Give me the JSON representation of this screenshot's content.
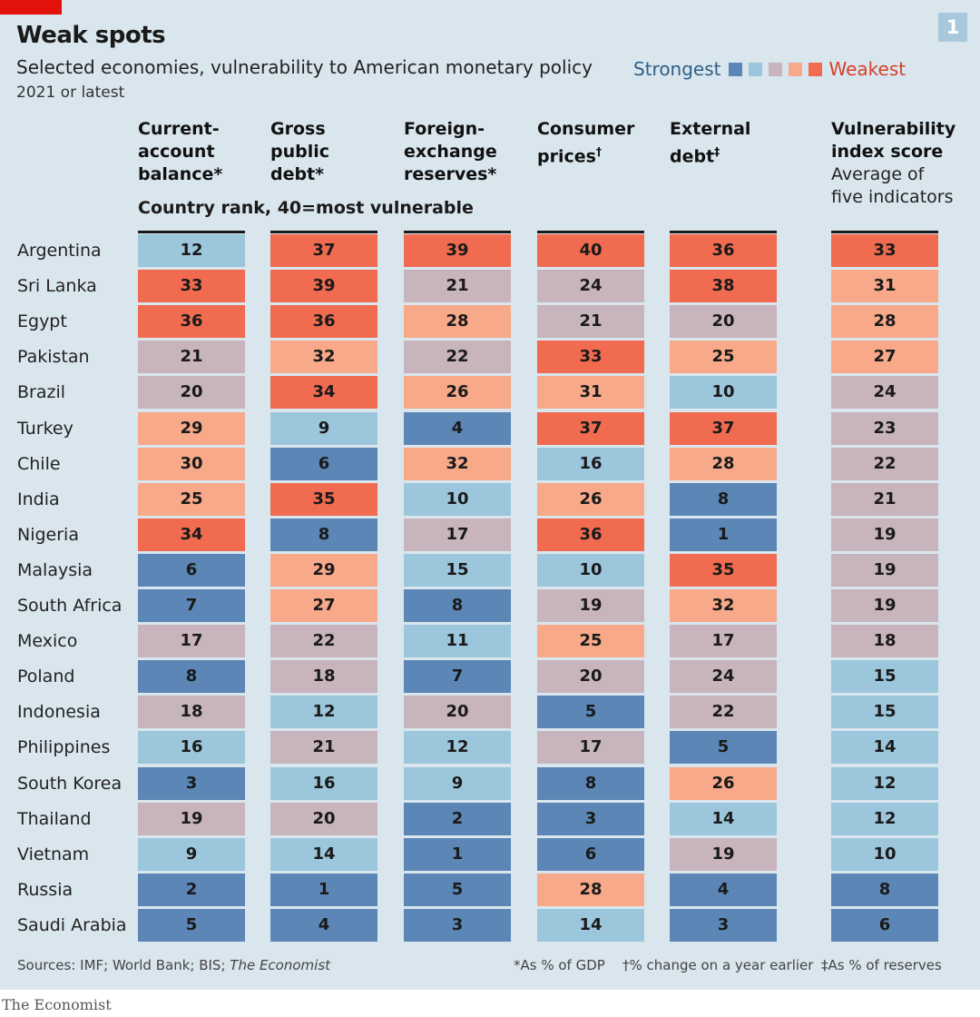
{
  "header": {
    "title": "Weak spots",
    "subtitle": "Selected economies, vulnerability to American monetary policy",
    "period": "2021 or latest",
    "chart_number": "1"
  },
  "legend": {
    "low_label": "Strongest",
    "high_label": "Weakest",
    "colors": [
      "#5b86b5",
      "#9cc6dc",
      "#c8b4bc",
      "#f7a98a",
      "#f06b50"
    ]
  },
  "chart_data": {
    "type": "heatmap",
    "title": "Weak spots",
    "subtitle": "Selected economies, vulnerability to American monetary policy",
    "value_note": "Country rank, 40=most  vulnerable",
    "color_bins": [
      [
        1,
        8
      ],
      [
        9,
        16
      ],
      [
        17,
        24
      ],
      [
        25,
        32
      ],
      [
        33,
        40
      ]
    ],
    "columns": [
      {
        "label": "Current-\naccount\nbalance*"
      },
      {
        "label": "Gross\npublic\ndebt*"
      },
      {
        "label": "Foreign-\nexchange\nreserves*"
      },
      {
        "label": "Consumer\nprices†"
      },
      {
        "label": "External\ndebt‡"
      },
      {
        "label": "Vulnerability\nindex score",
        "sublabel": "Average of\nfive indicators"
      }
    ],
    "rows": [
      {
        "country": "Argentina",
        "values": [
          12,
          37,
          39,
          40,
          36,
          33
        ]
      },
      {
        "country": "Sri Lanka",
        "values": [
          33,
          39,
          21,
          24,
          38,
          31
        ]
      },
      {
        "country": "Egypt",
        "values": [
          36,
          36,
          28,
          21,
          20,
          28
        ]
      },
      {
        "country": "Pakistan",
        "values": [
          21,
          32,
          22,
          33,
          25,
          27
        ]
      },
      {
        "country": "Brazil",
        "values": [
          20,
          34,
          26,
          31,
          10,
          24
        ]
      },
      {
        "country": "Turkey",
        "values": [
          29,
          9,
          4,
          37,
          37,
          23
        ]
      },
      {
        "country": "Chile",
        "values": [
          30,
          6,
          32,
          16,
          28,
          22
        ]
      },
      {
        "country": "India",
        "values": [
          25,
          35,
          10,
          26,
          8,
          21
        ]
      },
      {
        "country": "Nigeria",
        "values": [
          34,
          8,
          17,
          36,
          1,
          19
        ]
      },
      {
        "country": "Malaysia",
        "values": [
          6,
          29,
          15,
          10,
          35,
          19
        ]
      },
      {
        "country": "South Africa",
        "values": [
          7,
          27,
          8,
          19,
          32,
          19
        ]
      },
      {
        "country": "Mexico",
        "values": [
          17,
          22,
          11,
          25,
          17,
          18
        ]
      },
      {
        "country": "Poland",
        "values": [
          8,
          18,
          7,
          20,
          24,
          15
        ]
      },
      {
        "country": "Indonesia",
        "values": [
          18,
          12,
          20,
          5,
          22,
          15
        ]
      },
      {
        "country": "Philippines",
        "values": [
          16,
          21,
          12,
          17,
          5,
          14
        ]
      },
      {
        "country": "South Korea",
        "values": [
          3,
          16,
          9,
          8,
          26,
          12
        ]
      },
      {
        "country": "Thailand",
        "values": [
          19,
          20,
          2,
          3,
          14,
          12
        ]
      },
      {
        "country": "Vietnam",
        "values": [
          9,
          14,
          1,
          6,
          19,
          10
        ]
      },
      {
        "country": "Russia",
        "values": [
          2,
          1,
          5,
          28,
          4,
          8
        ]
      },
      {
        "country": "Saudi Arabia",
        "values": [
          5,
          4,
          3,
          14,
          3,
          6
        ]
      }
    ]
  },
  "footer": {
    "sources_prefix": "Sources: IMF; World Bank; BIS; ",
    "sources_italic": "The Economist",
    "note1": "*As % of GDP",
    "note2": "†% change on a year earlier",
    "note3": "‡As % of reserves",
    "brand": "The Economist"
  }
}
